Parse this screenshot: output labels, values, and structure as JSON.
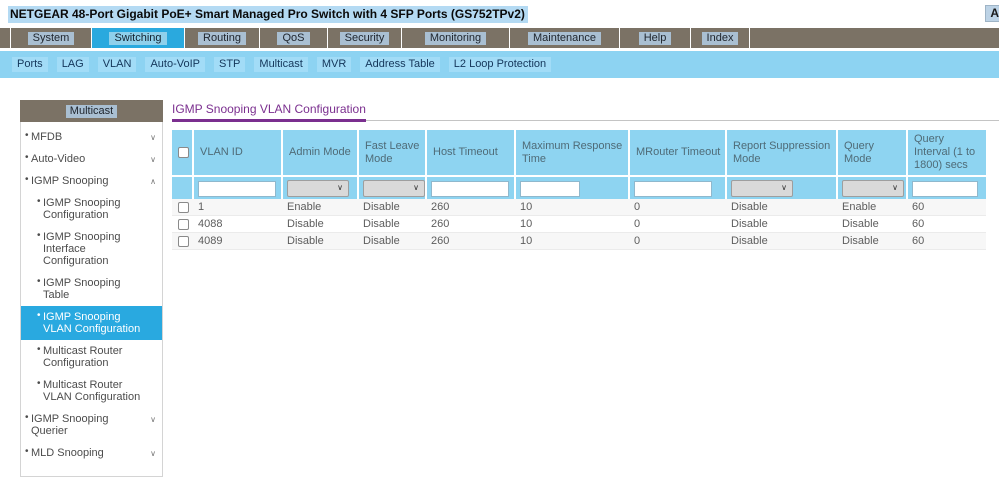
{
  "title_bar": {
    "title": "NETGEAR 48-Port Gigabit PoE+ Smart Managed Pro Switch with 4 SFP Ports (GS752TPv2)",
    "right_fragment": "A"
  },
  "main_nav": {
    "tabs": [
      {
        "label": "System",
        "active": false
      },
      {
        "label": "Switching",
        "active": true
      },
      {
        "label": "Routing",
        "active": false
      },
      {
        "label": "QoS",
        "active": false
      },
      {
        "label": "Security",
        "active": false
      },
      {
        "label": "Monitoring",
        "active": false
      },
      {
        "label": "Maintenance",
        "active": false
      },
      {
        "label": "Help",
        "active": false
      },
      {
        "label": "Index",
        "active": false
      }
    ]
  },
  "sub_nav": {
    "items": [
      "Ports",
      "LAG",
      "VLAN",
      "Auto-VoIP",
      "STP",
      "Multicast",
      "MVR",
      "Address Table",
      "L2 Loop Protection"
    ]
  },
  "sidebar": {
    "header": "Multicast",
    "items": [
      {
        "label": "MFDB",
        "level": 1,
        "chevron": "down",
        "selected": false
      },
      {
        "label": "Auto-Video",
        "level": 1,
        "chevron": "down",
        "selected": false
      },
      {
        "label": "IGMP Snooping",
        "level": 1,
        "chevron": "up",
        "selected": false
      },
      {
        "label": "IGMP Snooping Configuration",
        "level": 2,
        "chevron": "",
        "selected": false
      },
      {
        "label": "IGMP Snooping Interface Configuration",
        "level": 2,
        "chevron": "",
        "selected": false
      },
      {
        "label": "IGMP Snooping Table",
        "level": 2,
        "chevron": "",
        "selected": false
      },
      {
        "label": "IGMP Snooping VLAN Configuration",
        "level": 2,
        "chevron": "",
        "selected": true
      },
      {
        "label": "Multicast Router Configuration",
        "level": 2,
        "chevron": "",
        "selected": false
      },
      {
        "label": "Multicast Router VLAN Configuration",
        "level": 2,
        "chevron": "",
        "selected": false
      },
      {
        "label": "IGMP Snooping Querier",
        "level": 1,
        "chevron": "down",
        "selected": false
      },
      {
        "label": "MLD Snooping",
        "level": 1,
        "chevron": "down",
        "selected": false
      }
    ]
  },
  "main": {
    "page_title": "IGMP Snooping VLAN Configuration",
    "table": {
      "columns": [
        "VLAN ID",
        "Admin Mode",
        "Fast Leave Mode",
        "Host Timeout",
        "Maximum Response Time",
        "MRouter Timeout",
        "Report Suppression Mode",
        "Query Mode",
        "Query Interval (1 to 1800) secs"
      ],
      "filters": [
        {
          "type": "input",
          "value": "",
          "size": "normal"
        },
        {
          "type": "select",
          "value": ""
        },
        {
          "type": "select",
          "value": ""
        },
        {
          "type": "input",
          "value": "",
          "size": "normal"
        },
        {
          "type": "input",
          "value": "",
          "size": "narrow"
        },
        {
          "type": "input",
          "value": "",
          "size": "normal"
        },
        {
          "type": "select",
          "value": ""
        },
        {
          "type": "select",
          "value": ""
        },
        {
          "type": "input",
          "value": "",
          "size": "mid"
        }
      ],
      "rows": [
        [
          "1",
          "Enable",
          "Disable",
          "260",
          "10",
          "0",
          "Disable",
          "Enable",
          "60"
        ],
        [
          "4088",
          "Disable",
          "Disable",
          "260",
          "10",
          "0",
          "Disable",
          "Disable",
          "60"
        ],
        [
          "4089",
          "Disable",
          "Disable",
          "260",
          "10",
          "0",
          "Disable",
          "Disable",
          "60"
        ]
      ]
    }
  },
  "colors": {
    "accent_blue": "#2aa9de",
    "nav_brown": "#7b7265",
    "panel_blue": "#8ed4f1",
    "title_purple": "#7b2f8f",
    "selected_sidebar_blue": "#29a9e0"
  }
}
